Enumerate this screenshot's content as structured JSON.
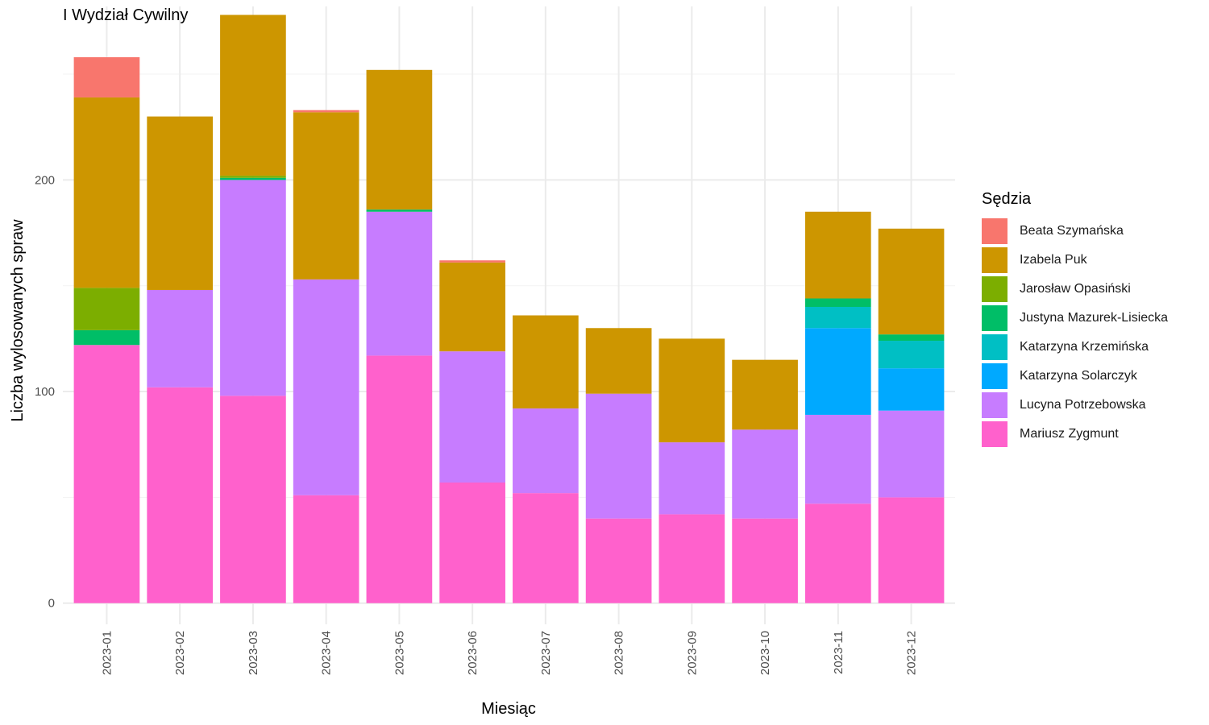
{
  "chart_data": {
    "type": "bar",
    "stacked": true,
    "title": "I Wydział Cywilny",
    "xlabel": "Miesiąc",
    "ylabel": "Liczba wylosowanych spraw",
    "ylim": [
      -10,
      282
    ],
    "yticks": [
      0,
      100,
      200
    ],
    "grid": true,
    "legend_title": "Sędzia",
    "legend_position": "right",
    "categories": [
      "2023-01",
      "2023-02",
      "2023-03",
      "2023-04",
      "2023-05",
      "2023-06",
      "2023-07",
      "2023-08",
      "2023-09",
      "2023-10",
      "2023-11",
      "2023-12"
    ],
    "series": [
      {
        "name": "Mariusz Zygmunt",
        "color": "#FF61CC",
        "values": [
          122,
          102,
          98,
          51,
          117,
          57,
          52,
          40,
          42,
          40,
          47,
          50
        ]
      },
      {
        "name": "Lucyna Potrzebowska",
        "color": "#C77CFF",
        "values": [
          0,
          46,
          102,
          102,
          68,
          62,
          40,
          59,
          34,
          42,
          42,
          41
        ]
      },
      {
        "name": "Katarzyna Solarczyk",
        "color": "#00A9FF",
        "values": [
          0,
          0,
          0,
          0,
          0,
          0,
          0,
          0,
          0,
          0,
          41,
          20
        ]
      },
      {
        "name": "Katarzyna Krzemińska",
        "color": "#00BFC4",
        "values": [
          0,
          0,
          0,
          0,
          0,
          0,
          0,
          0,
          0,
          0,
          10,
          13
        ]
      },
      {
        "name": "Justyna Mazurek-Lisiecka",
        "color": "#00BE67",
        "values": [
          7,
          0,
          1,
          0,
          1,
          0,
          0,
          0,
          0,
          0,
          4,
          3
        ]
      },
      {
        "name": "Jarosław Opasiński",
        "color": "#7CAE00",
        "values": [
          20,
          0,
          1,
          0,
          0,
          0,
          0,
          0,
          0,
          0,
          0,
          0
        ]
      },
      {
        "name": "Izabela Puk",
        "color": "#CD9600",
        "values": [
          90,
          82,
          76,
          79,
          66,
          42,
          44,
          31,
          49,
          33,
          41,
          50
        ]
      },
      {
        "name": "Beata Szymańska",
        "color": "#F8766D",
        "values": [
          19,
          0,
          0,
          1,
          0,
          1,
          0,
          0,
          0,
          0,
          0,
          0
        ]
      }
    ]
  },
  "legend_order": [
    "Beata Szymańska",
    "Izabela Puk",
    "Jarosław Opasiński",
    "Justyna Mazurek-Lisiecka",
    "Katarzyna Krzemińska",
    "Katarzyna Solarczyk",
    "Lucyna Potrzebowska",
    "Mariusz Zygmunt"
  ]
}
